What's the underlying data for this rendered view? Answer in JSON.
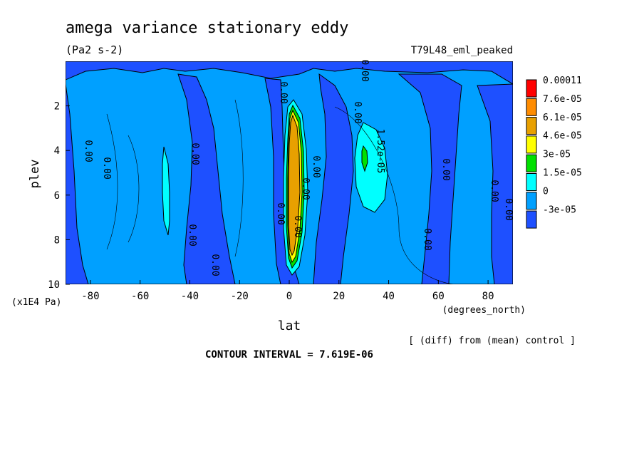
{
  "chart_data": {
    "type": "heatmap",
    "title": "amega variance stationary eddy",
    "units": "(Pa2 s-2)",
    "run_label": "T79L48_eml_peaked",
    "xlabel": "lat",
    "x_units": "(degrees_north)",
    "ylabel": "plev",
    "y_scale_note": "(x1E4 Pa)",
    "xlim": [
      -90,
      90
    ],
    "ylim": [
      10,
      0
    ],
    "x_ticks": [
      -80,
      -60,
      -40,
      -20,
      0,
      20,
      40,
      60,
      80
    ],
    "x_tick_labels": [
      "-80",
      "-60",
      "-40",
      "-20",
      "0",
      "20",
      "40",
      "60",
      "80"
    ],
    "y_ticks": [
      2,
      4,
      6,
      8,
      10
    ],
    "y_tick_labels": [
      "2",
      "4",
      "6",
      "8",
      "10"
    ],
    "colorbar": {
      "levels": [
        "0.00011",
        "7.6e-05",
        "6.1e-05",
        "4.6e-05",
        "3e-05",
        "1.5e-05",
        "0",
        "-3e-05"
      ],
      "colors": [
        "#ff0000",
        "#ff8c00",
        "#e8a000",
        "#ffff00",
        "#00e000",
        "#00ffff",
        "#00a0ff",
        "#1e50ff"
      ]
    },
    "contour_labels": [
      "0.00",
      "0.00",
      "0.00",
      "0.00",
      "0.00",
      "0.00",
      "0.00",
      "0.00",
      "0.00",
      "0.00",
      "0.00",
      "0.00",
      "0.00",
      "0.00",
      "0.00",
      "0.00",
      "1.52e-05"
    ],
    "contour_interval_text": "CONTOUR INTERVAL = 7.619E-06",
    "diff_note": "[ (diff) from (mean) control ]",
    "colors": {
      "positive_light": "#00a0ff",
      "negative": "#1e50ff",
      "mid": "#00ffff",
      "green": "#00e000",
      "orange": "#e8a000",
      "dark_orange": "#ff8c00"
    }
  }
}
